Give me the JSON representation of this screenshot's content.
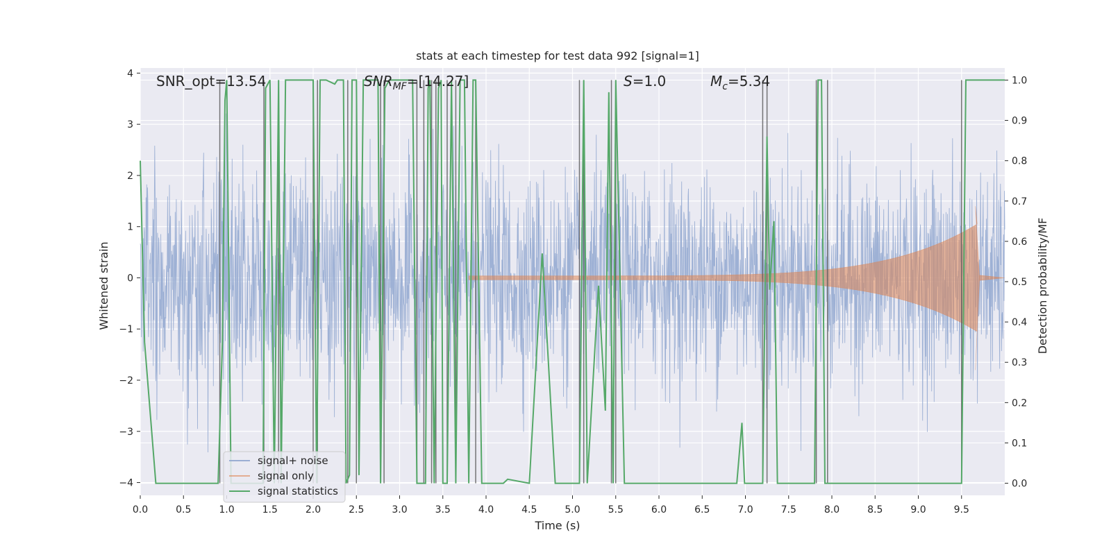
{
  "chart_data": {
    "type": "line",
    "title": "stats at each timestep for test data 992 [signal=1]",
    "xlabel": "Time (s)",
    "ylabel_left": "Whitened strain",
    "ylabel_right": "Detection probability/MF",
    "xlim": [
      0.0,
      10.0
    ],
    "ylim_left": [
      -4.25,
      4.1
    ],
    "ylim_right": [
      -0.03,
      1.03
    ],
    "x_ticks": [
      "0.0",
      "0.5",
      "1.0",
      "1.5",
      "2.0",
      "2.5",
      "3.0",
      "3.5",
      "4.0",
      "4.5",
      "5.0",
      "5.5",
      "6.0",
      "6.5",
      "7.0",
      "7.5",
      "8.0",
      "8.5",
      "9.0",
      "9.5"
    ],
    "y_ticks_left": [
      "4",
      "3",
      "2",
      "1",
      "0",
      "−1",
      "−2",
      "−3",
      "−4"
    ],
    "y_ticks_right": [
      "1.0",
      "0.9",
      "0.8",
      "0.7",
      "0.6",
      "0.5",
      "0.4",
      "0.3",
      "0.2",
      "0.1",
      "0.0"
    ],
    "grid": true,
    "legend_position": "lower-left",
    "colors": {
      "background": "#eaeaf2",
      "grid": "#ffffff",
      "noise": "#9aaed3",
      "signal": "#dd8452",
      "stats": "#55a868",
      "vlines": "#555555"
    },
    "annotations": [
      {
        "type": "snr_opt",
        "text": "SNR_opt=13.54"
      },
      {
        "type": "snr_mf",
        "base": "SNR",
        "sub": "MF",
        "value": "=[14.27]"
      },
      {
        "type": "s",
        "base": "S",
        "value": "=1.0"
      },
      {
        "type": "mc",
        "base": "M",
        "sub": "c",
        "value": "=5.34"
      }
    ],
    "series": [
      {
        "name": "signal+ noise",
        "axis": "left",
        "description": "whitened noise, approx. range -3.2 to 3.2 (unit variance)"
      },
      {
        "name": "signal only",
        "axis": "left",
        "chirp": {
          "start_time": 3.8,
          "merger_time": 9.68,
          "amp_start": 0.05,
          "amp_peak": 1.4
        }
      },
      {
        "name": "signal statistics",
        "axis": "right",
        "x": [
          0.0,
          0.05,
          0.18,
          0.9,
          0.95,
          0.98,
          1.0,
          1.05,
          1.42,
          1.45,
          1.5,
          1.55,
          1.6,
          1.63,
          1.68,
          1.7,
          2.0,
          2.04,
          2.08,
          2.1,
          2.15,
          2.25,
          2.28,
          2.35,
          2.38,
          2.42,
          2.45,
          2.5,
          2.53,
          2.58,
          2.75,
          2.78,
          2.83,
          2.88,
          3.0,
          3.15,
          3.2,
          3.3,
          3.33,
          3.35,
          3.4,
          3.45,
          3.48,
          3.5,
          3.55,
          3.6,
          3.65,
          3.7,
          3.75,
          3.8,
          3.85,
          3.88,
          3.95,
          4.2,
          4.25,
          4.5,
          4.65,
          4.8,
          5.08,
          5.13,
          5.17,
          5.3,
          5.38,
          5.42,
          5.47,
          5.5,
          5.55,
          5.6,
          6.9,
          6.96,
          6.99,
          7.1,
          7.2,
          7.25,
          7.28,
          7.33,
          7.37,
          7.4,
          7.45,
          7.8,
          7.84,
          7.88,
          7.92,
          7.95,
          9.5,
          9.55,
          9.85,
          10.0
        ],
        "y": [
          0.8,
          0.35,
          0.0,
          0.0,
          0.35,
          0.95,
          1.0,
          0.0,
          0.0,
          0.98,
          1.0,
          0.0,
          1.0,
          0.0,
          1.0,
          1.0,
          1.0,
          0.0,
          1.0,
          1.0,
          1.0,
          0.99,
          1.0,
          1.0,
          0.0,
          0.02,
          1.0,
          1.0,
          0.02,
          1.0,
          1.0,
          0.0,
          0.98,
          1.0,
          1.0,
          1.0,
          0.0,
          0.0,
          0.98,
          1.0,
          0.0,
          0.98,
          1.0,
          0.0,
          0.0,
          1.0,
          0.0,
          1.0,
          1.0,
          0.0,
          1.0,
          1.0,
          0.0,
          0.0,
          0.01,
          0.0,
          0.57,
          0.0,
          0.0,
          1.0,
          0.0,
          0.49,
          0.18,
          0.97,
          0.0,
          1.0,
          0.5,
          0.0,
          0.0,
          0.15,
          0.0,
          0.0,
          0.0,
          0.86,
          0.48,
          0.65,
          0.0,
          0.0,
          0.0,
          0.0,
          1.0,
          1.0,
          0.0,
          0.0,
          0.0,
          1.0,
          1.0,
          1.0
        ]
      }
    ],
    "vertical_lines_x": [
      0.92,
      1.43,
      1.6,
      2.0,
      2.05,
      2.4,
      2.5,
      2.78,
      2.82,
      3.2,
      3.28,
      3.37,
      3.42,
      3.55,
      3.65,
      3.88,
      5.08,
      5.13,
      5.45,
      5.5,
      7.2,
      7.25,
      7.82,
      7.95,
      9.5
    ]
  },
  "legend": {
    "items": [
      {
        "label": "signal+ noise",
        "color": "#9aaed3"
      },
      {
        "label": "signal only",
        "color": "#dd8452"
      },
      {
        "label": "signal statistics",
        "color": "#55a868"
      }
    ]
  }
}
